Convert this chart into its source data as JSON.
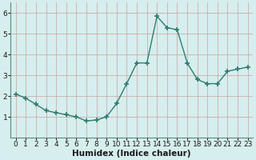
{
  "x": [
    0,
    1,
    2,
    3,
    4,
    5,
    6,
    7,
    8,
    9,
    10,
    11,
    12,
    13,
    14,
    15,
    16,
    17,
    18,
    19,
    20,
    21,
    22,
    23
  ],
  "y": [
    2.1,
    1.9,
    1.6,
    1.3,
    1.2,
    1.1,
    1.0,
    0.8,
    0.85,
    1.0,
    1.65,
    2.6,
    3.6,
    3.6,
    5.85,
    5.3,
    5.2,
    3.6,
    2.8,
    2.6,
    2.6,
    3.2,
    3.3,
    3.4
  ],
  "line_color": "#2d7d6e",
  "marker": "+",
  "marker_size": 4,
  "bg_color": "#d6eeee",
  "grid_color": "#c8d8d8",
  "xlabel": "Humidex (Indice chaleur)",
  "ylim": [
    0,
    6.5
  ],
  "xlim": [
    -0.5,
    23.5
  ],
  "yticks": [
    1,
    2,
    3,
    4,
    5,
    6
  ],
  "xticks": [
    0,
    1,
    2,
    3,
    4,
    5,
    6,
    7,
    8,
    9,
    10,
    11,
    12,
    13,
    14,
    15,
    16,
    17,
    18,
    19,
    20,
    21,
    22,
    23
  ],
  "xlabel_fontsize": 7.5,
  "tick_fontsize": 6.5,
  "line_width": 1.0,
  "spine_color": "#5a8a80"
}
